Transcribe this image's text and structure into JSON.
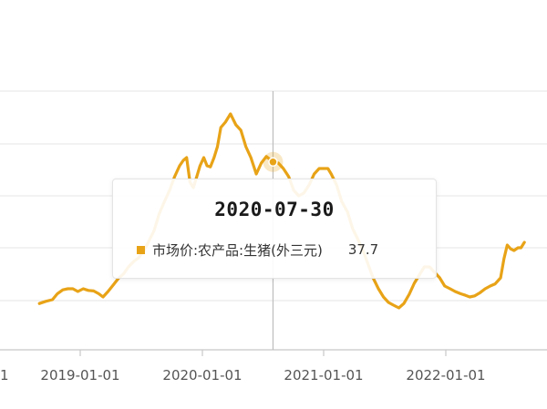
{
  "chart_data": {
    "type": "line",
    "title": "",
    "xlabel": "",
    "ylabel": "",
    "grid": "horizontal",
    "x_tick_labels": [
      "2019-01-01",
      "2020-01-01",
      "2021-01-01",
      "2022-01-01"
    ],
    "partial_left_tick_label": "1",
    "series": [
      {
        "name": "市场价:农产品:生猪(外三元)",
        "color": "#e8a317",
        "x": [
          "2018-09-01",
          "2018-09-20",
          "2018-10-10",
          "2018-10-25",
          "2018-11-10",
          "2018-11-25",
          "2018-12-10",
          "2018-12-25",
          "2019-01-10",
          "2019-01-25",
          "2019-02-10",
          "2019-02-25",
          "2019-03-10",
          "2019-03-25",
          "2019-04-10",
          "2019-04-25",
          "2019-05-10",
          "2019-05-25",
          "2019-06-10",
          "2019-06-25",
          "2019-07-10",
          "2019-07-25",
          "2019-08-10",
          "2019-08-25",
          "2019-09-10",
          "2019-09-25",
          "2019-10-10",
          "2019-10-25",
          "2019-11-05",
          "2019-11-15",
          "2019-11-25",
          "2019-12-05",
          "2019-12-15",
          "2019-12-25",
          "2020-01-05",
          "2020-01-15",
          "2020-01-25",
          "2020-02-05",
          "2020-02-15",
          "2020-02-25",
          "2020-03-10",
          "2020-03-25",
          "2020-04-10",
          "2020-04-25",
          "2020-05-10",
          "2020-05-25",
          "2020-06-10",
          "2020-06-25",
          "2020-07-10",
          "2020-07-30",
          "2020-08-15",
          "2020-08-30",
          "2020-09-15",
          "2020-09-30",
          "2020-10-15",
          "2020-10-30",
          "2020-11-15",
          "2020-11-30",
          "2020-12-15",
          "2020-12-30",
          "2021-01-10",
          "2021-01-20",
          "2021-02-05",
          "2021-02-20",
          "2021-03-10",
          "2021-03-25",
          "2021-04-10",
          "2021-04-25",
          "2021-05-10",
          "2021-05-25",
          "2021-06-10",
          "2021-06-25",
          "2021-07-10",
          "2021-07-25",
          "2021-08-10",
          "2021-08-25",
          "2021-09-10",
          "2021-09-25",
          "2021-10-10",
          "2021-10-25",
          "2021-11-10",
          "2021-11-25",
          "2021-12-10",
          "2021-12-25",
          "2022-01-10",
          "2022-01-25",
          "2022-02-10",
          "2022-02-25",
          "2022-03-10",
          "2022-03-25",
          "2022-04-10",
          "2022-04-25",
          "2022-05-10",
          "2022-05-25",
          "2022-06-10",
          "2022-06-20",
          "2022-06-30",
          "2022-07-10",
          "2022-07-20",
          "2022-08-01",
          "2022-08-10",
          "2022-08-20"
        ],
        "values": [
          11.8,
          12.2,
          12.5,
          13.6,
          14.3,
          14.5,
          14.5,
          14.0,
          14.5,
          14.2,
          14.1,
          13.6,
          13.0,
          14.0,
          15.2,
          16.4,
          17.2,
          18.5,
          19.5,
          20.2,
          21.5,
          23.2,
          25.2,
          28.2,
          30.5,
          32.5,
          35.0,
          37.0,
          38.0,
          38.5,
          34.0,
          33.0,
          35.0,
          37.0,
          38.5,
          37.0,
          36.8,
          38.5,
          40.5,
          44.0,
          45.0,
          46.5,
          44.5,
          43.5,
          40.5,
          38.5,
          35.5,
          37.5,
          38.7,
          37.7,
          37.5,
          36.5,
          35.0,
          32.5,
          31.5,
          32.0,
          33.5,
          35.5,
          36.5,
          36.5,
          36.5,
          35.5,
          33.5,
          30.5,
          28.5,
          25.5,
          23.5,
          21.5,
          19.0,
          16.5,
          14.5,
          13.0,
          12.0,
          11.5,
          11.0,
          11.8,
          13.5,
          15.5,
          17.0,
          18.5,
          18.5,
          17.5,
          16.5,
          15.0,
          14.5,
          14.0,
          13.6,
          13.3,
          13.0,
          13.2,
          13.8,
          14.5,
          15.0,
          15.4,
          16.5,
          20.0,
          22.5,
          21.8,
          21.5,
          22.0,
          22.0,
          23.0
        ]
      }
    ],
    "cursor": {
      "date": "2020-07-30",
      "value": 37.7
    },
    "tooltip": {
      "title": "2020-07-30",
      "series_name": "市场价:农产品:生猪(外三元)",
      "value": "37.7"
    }
  }
}
